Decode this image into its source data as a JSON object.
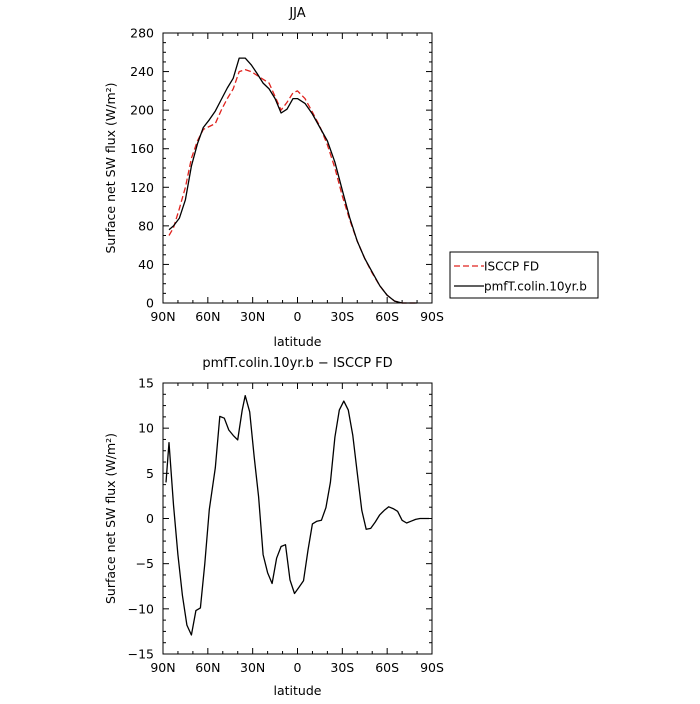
{
  "chart_data": [
    {
      "type": "line",
      "title": "JJA",
      "xlabel": "latitude",
      "ylabel": "Surface net SW flux (W/m²)",
      "xlim": [
        90,
        -90
      ],
      "ylim": [
        0,
        280
      ],
      "x_ticks": [
        90,
        60,
        30,
        0,
        -30,
        -60,
        -90
      ],
      "x_tick_labels": [
        "90N",
        "60N",
        "30N",
        "0",
        "30S",
        "60S",
        "90S"
      ],
      "y_ticks": [
        0,
        40,
        80,
        120,
        160,
        200,
        240,
        280
      ],
      "y_tick_labels": [
        "0",
        "40",
        "80",
        "120",
        "160",
        "200",
        "240",
        "280"
      ],
      "grid": false,
      "legend_placement": "right",
      "series": [
        {
          "name": "ISCCP FD",
          "color": "#e0231e",
          "dash": "dashed",
          "x": [
            86,
            83,
            79,
            75,
            71,
            67,
            63,
            59,
            55,
            51,
            47,
            43,
            39,
            35,
            31,
            27,
            23,
            19,
            15,
            11,
            7,
            3,
            0,
            -5,
            -10,
            -15,
            -20,
            -25,
            -30,
            -35,
            -40,
            -45,
            -50,
            -55,
            -60,
            -65,
            -70,
            -75,
            -80
          ],
          "y": [
            70,
            78,
            98,
            120,
            150,
            168,
            180,
            183,
            186,
            200,
            212,
            222,
            240,
            242,
            240,
            236,
            232,
            228,
            214,
            200,
            208,
            218,
            220,
            212,
            198,
            183,
            164,
            140,
            111,
            86,
            64,
            46,
            31,
            18,
            8,
            2,
            0,
            0,
            0
          ]
        },
        {
          "name": "pmfT.colin.10yr.b",
          "color": "#000000",
          "dash": "solid",
          "x": [
            86,
            83,
            79,
            75,
            71,
            67,
            63,
            59,
            55,
            51,
            47,
            43,
            39,
            35,
            31,
            27,
            23,
            19,
            15,
            11,
            7,
            3,
            0,
            -5,
            -10,
            -15,
            -20,
            -25,
            -30,
            -35,
            -40,
            -45,
            -50,
            -55,
            -60,
            -65,
            -70,
            -75,
            -80
          ],
          "y": [
            76,
            80,
            88,
            107,
            142,
            165,
            182,
            190,
            199,
            211,
            223,
            233,
            254,
            254,
            247,
            238,
            228,
            222,
            212,
            197,
            201,
            212,
            212,
            207,
            196,
            182,
            168,
            146,
            117,
            88,
            64,
            46,
            32,
            18,
            8,
            2,
            0,
            0,
            0
          ]
        }
      ]
    },
    {
      "type": "line",
      "title": "pmfT.colin.10yr.b − ISCCP FD",
      "xlabel": "latitude",
      "ylabel": "Surface net SW flux (W/m²)",
      "xlim": [
        90,
        -90
      ],
      "ylim": [
        -15,
        15
      ],
      "x_ticks": [
        90,
        60,
        30,
        0,
        -30,
        -60,
        -90
      ],
      "x_tick_labels": [
        "90N",
        "60N",
        "30N",
        "0",
        "30S",
        "60S",
        "90S"
      ],
      "y_ticks": [
        -15,
        -10,
        -5,
        0,
        5,
        10,
        15
      ],
      "y_tick_labels": [
        "−15",
        "−10",
        "−5",
        "0",
        "5",
        "10",
        "15"
      ],
      "grid": false,
      "series": [
        {
          "color": "#000000",
          "dash": "solid",
          "x": [
            88,
            86,
            83,
            80,
            77,
            74,
            71,
            68,
            65,
            62,
            59,
            55,
            52,
            49,
            46,
            43,
            40,
            37,
            35,
            32,
            29,
            26,
            23,
            20,
            17,
            14,
            11,
            8,
            5,
            2,
            -1,
            -4,
            -7,
            -10,
            -13,
            -16,
            -19,
            -22,
            -25,
            -28,
            -31,
            -34,
            -37,
            -40,
            -43,
            -46,
            -49,
            -52,
            -55,
            -58,
            -61,
            -64,
            -67,
            -70,
            -73,
            -76,
            -79,
            -82,
            -85,
            -88
          ],
          "y": [
            4,
            8.4,
            1.5,
            -4,
            -8.5,
            -11.8,
            -12.9,
            -10.2,
            -9.9,
            -5,
            1,
            5.6,
            11.3,
            11.1,
            9.8,
            9.2,
            8.7,
            12,
            13.6,
            11.8,
            6.8,
            2.4,
            -4,
            -6,
            -7.2,
            -4.4,
            -3.1,
            -2.9,
            -6.8,
            -8.3,
            -7.6,
            -6.9,
            -3.5,
            -0.6,
            -0.3,
            -0.2,
            1.2,
            4,
            9,
            12,
            13,
            12,
            9.2,
            5,
            0.9,
            -1.2,
            -1.1,
            -0.4,
            0.4,
            0.9,
            1.3,
            1.1,
            0.8,
            -0.2,
            -0.5,
            -0.3,
            -0.1,
            0,
            0,
            0
          ]
        }
      ]
    }
  ]
}
